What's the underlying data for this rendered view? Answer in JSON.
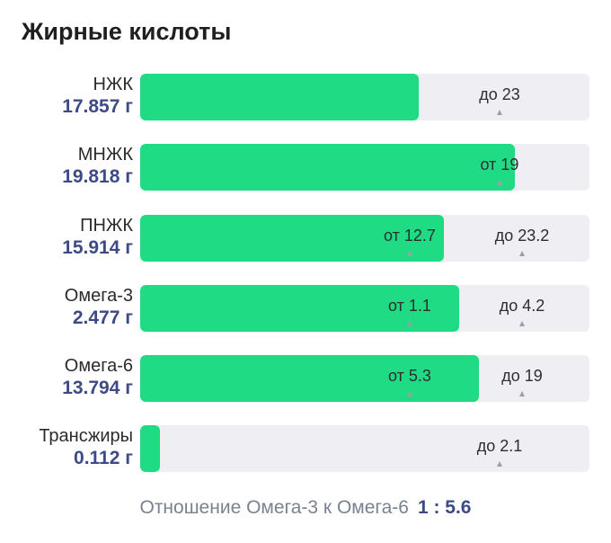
{
  "title": "Жирные кислоты",
  "rows": [
    {
      "name": "НЖК",
      "amount": "17.857 г",
      "fill_fraction": 0.62,
      "markers": [
        {
          "text": "до 23",
          "position_fraction": 0.8
        }
      ]
    },
    {
      "name": "МНЖК",
      "amount": "19.818 г",
      "fill_fraction": 0.834,
      "markers": [
        {
          "text": "от 19",
          "position_fraction": 0.8
        }
      ]
    },
    {
      "name": "ПНЖК",
      "amount": "15.914 г",
      "fill_fraction": 0.676,
      "markers": [
        {
          "text": "от 12.7",
          "position_fraction": 0.6
        },
        {
          "text": "до 23.2",
          "position_fraction": 0.85
        }
      ]
    },
    {
      "name": "Омега-3",
      "amount": "2.477 г",
      "fill_fraction": 0.71,
      "markers": [
        {
          "text": "от 1.1",
          "position_fraction": 0.6
        },
        {
          "text": "до 4.2",
          "position_fraction": 0.85
        }
      ]
    },
    {
      "name": "Омега-6",
      "amount": "13.794 г",
      "fill_fraction": 0.754,
      "markers": [
        {
          "text": "от 5.3",
          "position_fraction": 0.6
        },
        {
          "text": "до 19",
          "position_fraction": 0.85
        }
      ]
    },
    {
      "name": "Трансжиры",
      "amount": "0.112 г",
      "fill_fraction": 0.044,
      "markers": [
        {
          "text": "до 2.1",
          "position_fraction": 0.8
        }
      ]
    }
  ],
  "ratio": {
    "label": "Отношение Омега-3 к Омега-6",
    "value": "1 : 5.6"
  },
  "colors": {
    "fill": "#1fdc84",
    "track": "#eeeef3",
    "amount": "#3d4a86"
  }
}
